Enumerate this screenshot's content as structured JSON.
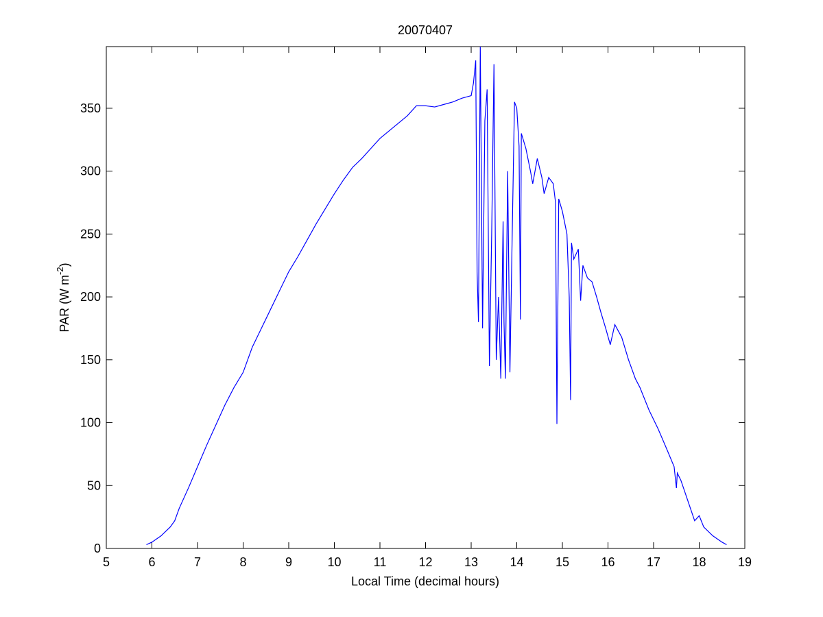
{
  "chart_data": {
    "type": "line",
    "title": "20070407",
    "xlabel": "Local Time (decimal hours)",
    "ylabel_parts": [
      "PAR (W m",
      "-2",
      ")"
    ],
    "xlim": [
      5,
      19
    ],
    "xticks": [
      5,
      6,
      7,
      8,
      9,
      10,
      11,
      12,
      13,
      14,
      15,
      16,
      17,
      18,
      19
    ],
    "ylim": [
      0,
      399
    ],
    "yticks": [
      0,
      50,
      100,
      150,
      200,
      250,
      300,
      350
    ],
    "grid": false,
    "series": [
      {
        "color": "#0000ff",
        "x": [
          5.88,
          6.0,
          6.2,
          6.4,
          6.5,
          6.6,
          6.8,
          7.0,
          7.2,
          7.4,
          7.6,
          7.8,
          8.0,
          8.2,
          8.4,
          8.6,
          8.8,
          9.0,
          9.2,
          9.4,
          9.6,
          9.8,
          10.0,
          10.2,
          10.4,
          10.6,
          10.8,
          11.0,
          11.2,
          11.4,
          11.6,
          11.8,
          12.0,
          12.2,
          12.4,
          12.6,
          12.8,
          13.0,
          13.05,
          13.1,
          13.13,
          13.16,
          13.2,
          13.25,
          13.3,
          13.35,
          13.4,
          13.45,
          13.5,
          13.55,
          13.6,
          13.65,
          13.7,
          13.72,
          13.75,
          13.8,
          13.85,
          13.9,
          13.95,
          14.0,
          14.05,
          14.08,
          14.1,
          14.2,
          14.3,
          14.35,
          14.45,
          14.55,
          14.6,
          14.7,
          14.8,
          14.85,
          14.88,
          14.92,
          15.0,
          15.1,
          15.15,
          15.18,
          15.2,
          15.25,
          15.35,
          15.4,
          15.45,
          15.55,
          15.65,
          15.75,
          15.85,
          15.95,
          16.05,
          16.15,
          16.3,
          16.45,
          16.6,
          16.7,
          16.9,
          17.1,
          17.3,
          17.45,
          17.5,
          17.52,
          17.6,
          17.75,
          17.9,
          18.0,
          18.1,
          18.3,
          18.5,
          18.6
        ],
        "values": [
          3,
          5,
          10,
          17,
          22,
          32,
          48,
          65,
          82,
          98,
          114,
          128,
          140,
          160,
          175,
          190,
          205,
          220,
          232,
          245,
          258,
          270,
          282,
          293,
          303,
          310,
          318,
          326,
          332,
          338,
          344,
          352,
          352,
          351,
          353,
          355,
          358,
          360,
          370,
          388,
          220,
          180,
          399,
          175,
          340,
          365,
          145,
          250,
          385,
          150,
          200,
          135,
          260,
          180,
          135,
          300,
          140,
          250,
          355,
          350,
          320,
          182,
          330,
          318,
          300,
          290,
          310,
          295,
          282,
          295,
          290,
          275,
          99,
          278,
          268,
          250,
          200,
          118,
          243,
          230,
          238,
          197,
          225,
          215,
          212,
          200,
          187,
          175,
          162,
          178,
          168,
          150,
          135,
          128,
          110,
          95,
          78,
          65,
          48,
          60,
          54,
          38,
          22,
          26,
          17,
          10,
          5,
          3
        ]
      }
    ]
  }
}
